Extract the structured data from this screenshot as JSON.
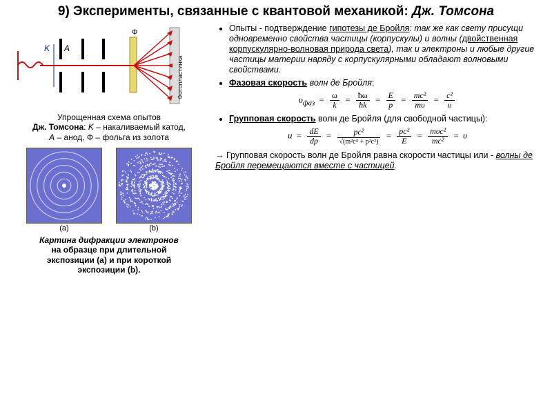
{
  "title_prefix": "9) Эксперименты, связанные с квантовой механикой: ",
  "title_name": "Дж. Томсона",
  "schematic": {
    "labels": {
      "K": "K",
      "A": "A",
      "F": "Ф",
      "plate": "Фотопластинка"
    },
    "colors": {
      "beam": "#c41313",
      "foil": "#e8d86f",
      "slit": "#000000",
      "cathode": "#c41313",
      "plate_bg": "#dcdcdc",
      "label_blue": "#0b2a8a"
    }
  },
  "fig1_caption_line1": "Упрощенная схема опытов",
  "fig1_caption_line2_prefix": "Дж. Томсона",
  "fig1_caption_line2_rest": ": ",
  "fig1_caption_K": "K",
  "fig1_caption_K_desc": " – накаливаемый катод,",
  "fig1_caption_A": "A",
  "fig1_caption_A_desc": " – анод, Ф – фольга из золота",
  "pattern": {
    "bg": "#6b6fd0",
    "ring_color": "#e8e2ff",
    "dot_color": "#ffffff",
    "a_label": "(a)",
    "b_label": "(b)"
  },
  "fig2_caption_l1": "Картина дифракции электронов",
  "fig2_caption_l2": "на  образце при длительной",
  "fig2_caption_l3": "экспозиции (a) и при короткой",
  "fig2_caption_l4": "экспозиции (b).",
  "bullets": {
    "b1_pref": "Опыты - подтверждение ",
    "b1_u1": "гипотезы де Бройля",
    "b1_mid1": ":  так же как свету присущи одновременно свойства частицы (корпускулы) и волны (",
    "b1_u2": "двойственная корпускулярно-волновая природа света",
    "b1_mid2": "), так и электроны и любые другие частицы материи наряду с корпускулярными обладают волновыми свойствами.",
    "b2_lbl": "Фазовая скорость",
    "b2_rest": " волн де Бройля",
    "b3_lbl": "Групповая скорость",
    "b3_rest": " волн де Бройля (для свободной частицы):"
  },
  "formula1": {
    "lhs": "υ",
    "lhs_sub": "фаз",
    "t1n": "ω",
    "t1d": "k",
    "t2n": "ħω",
    "t2d": "ħk",
    "t3n": "E",
    "t3d": "p",
    "t4n": "mc²",
    "t4d": "mυ",
    "t5n": "c²",
    "t5d": "υ"
  },
  "formula2": {
    "lhs": "u",
    "t1n": "dE",
    "t1d": "dp",
    "t2n": "pc²",
    "t2d": "√(m²c⁴ + p²c²)",
    "t3n": "pc²",
    "t3d": "E",
    "t4n": "mυc²",
    "t4d": "mc²",
    "rhs": "υ"
  },
  "concl_arrow": "→",
  "concl_pref": "   Групповая скорость волн де Бройля равна скорости частицы или - ",
  "concl_u": "волны де Бройля перемещаются вместе с частицей",
  "concl_end": "."
}
